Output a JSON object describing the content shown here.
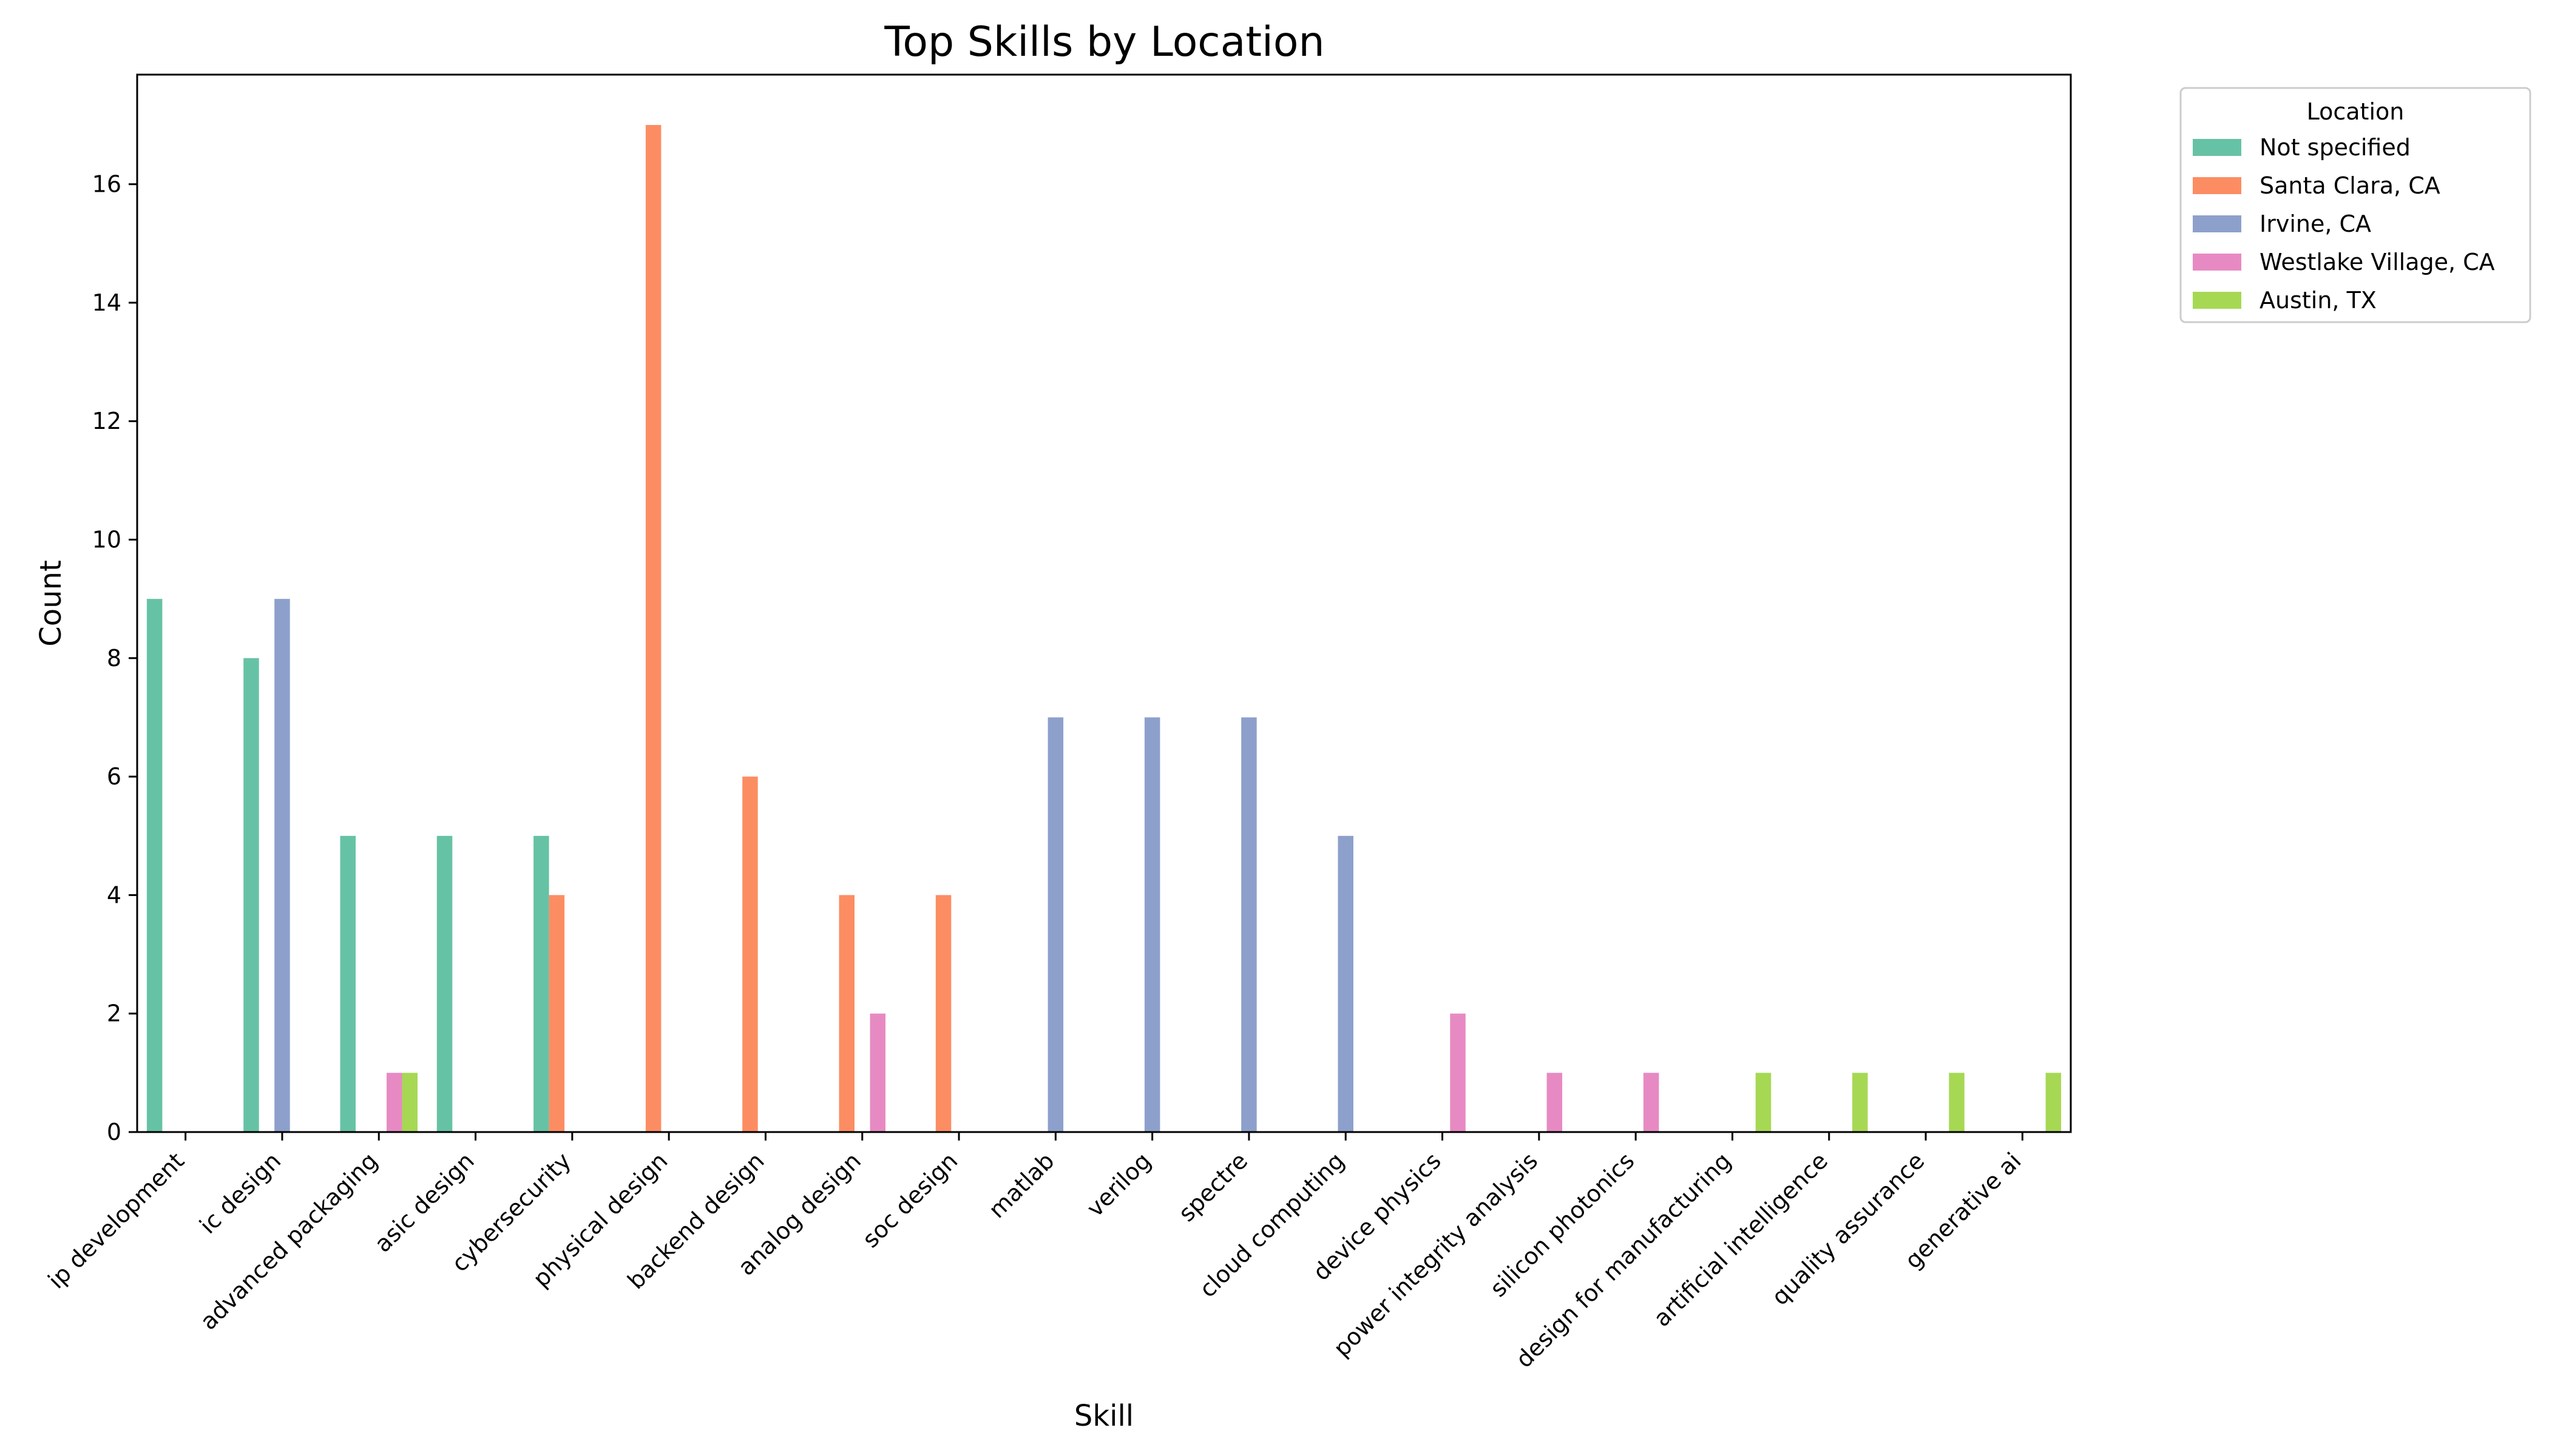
{
  "chart_data": {
    "type": "bar",
    "title": "Top Skills by Location",
    "xlabel": "Skill",
    "ylabel": "Count",
    "ylim": [
      0,
      17.85
    ],
    "yticks": [
      0,
      2,
      4,
      6,
      8,
      10,
      12,
      14,
      16
    ],
    "grid": false,
    "legend": {
      "title": "Location",
      "placement": "outside top-right"
    },
    "categories": [
      "ip development",
      "ic design",
      "advanced packaging",
      "asic design",
      "cybersecurity",
      "physical design",
      "backend design",
      "analog design",
      "soc design",
      "matlab",
      "verilog",
      "spectre",
      "cloud computing",
      "device physics",
      "power integrity analysis",
      "silicon photonics",
      "design for manufacturing",
      "artificial intelligence",
      "quality assurance",
      "generative ai"
    ],
    "series": [
      {
        "name": "Not specified",
        "color": "#66c2a5",
        "values": [
          9,
          8,
          5,
          5,
          5,
          0,
          0,
          0,
          0,
          0,
          0,
          0,
          0,
          0,
          0,
          0,
          0,
          0,
          0,
          0
        ]
      },
      {
        "name": "Santa Clara, CA",
        "color": "#fc8d62",
        "values": [
          0,
          0,
          0,
          0,
          4,
          17,
          6,
          4,
          4,
          0,
          0,
          0,
          0,
          0,
          0,
          0,
          0,
          0,
          0,
          0
        ]
      },
      {
        "name": "Irvine, CA",
        "color": "#8da0cb",
        "values": [
          0,
          9,
          0,
          0,
          0,
          0,
          0,
          0,
          0,
          7,
          7,
          7,
          5,
          0,
          0,
          0,
          0,
          0,
          0,
          0
        ]
      },
      {
        "name": "Westlake Village, CA",
        "color": "#e78ac3",
        "values": [
          0,
          0,
          1,
          0,
          0,
          0,
          0,
          2,
          0,
          0,
          0,
          0,
          0,
          2,
          1,
          1,
          0,
          0,
          0,
          0
        ]
      },
      {
        "name": "Austin, TX",
        "color": "#a6d854",
        "values": [
          0,
          0,
          1,
          0,
          0,
          0,
          0,
          0,
          0,
          0,
          0,
          0,
          0,
          0,
          0,
          0,
          1,
          1,
          1,
          1
        ]
      }
    ]
  }
}
